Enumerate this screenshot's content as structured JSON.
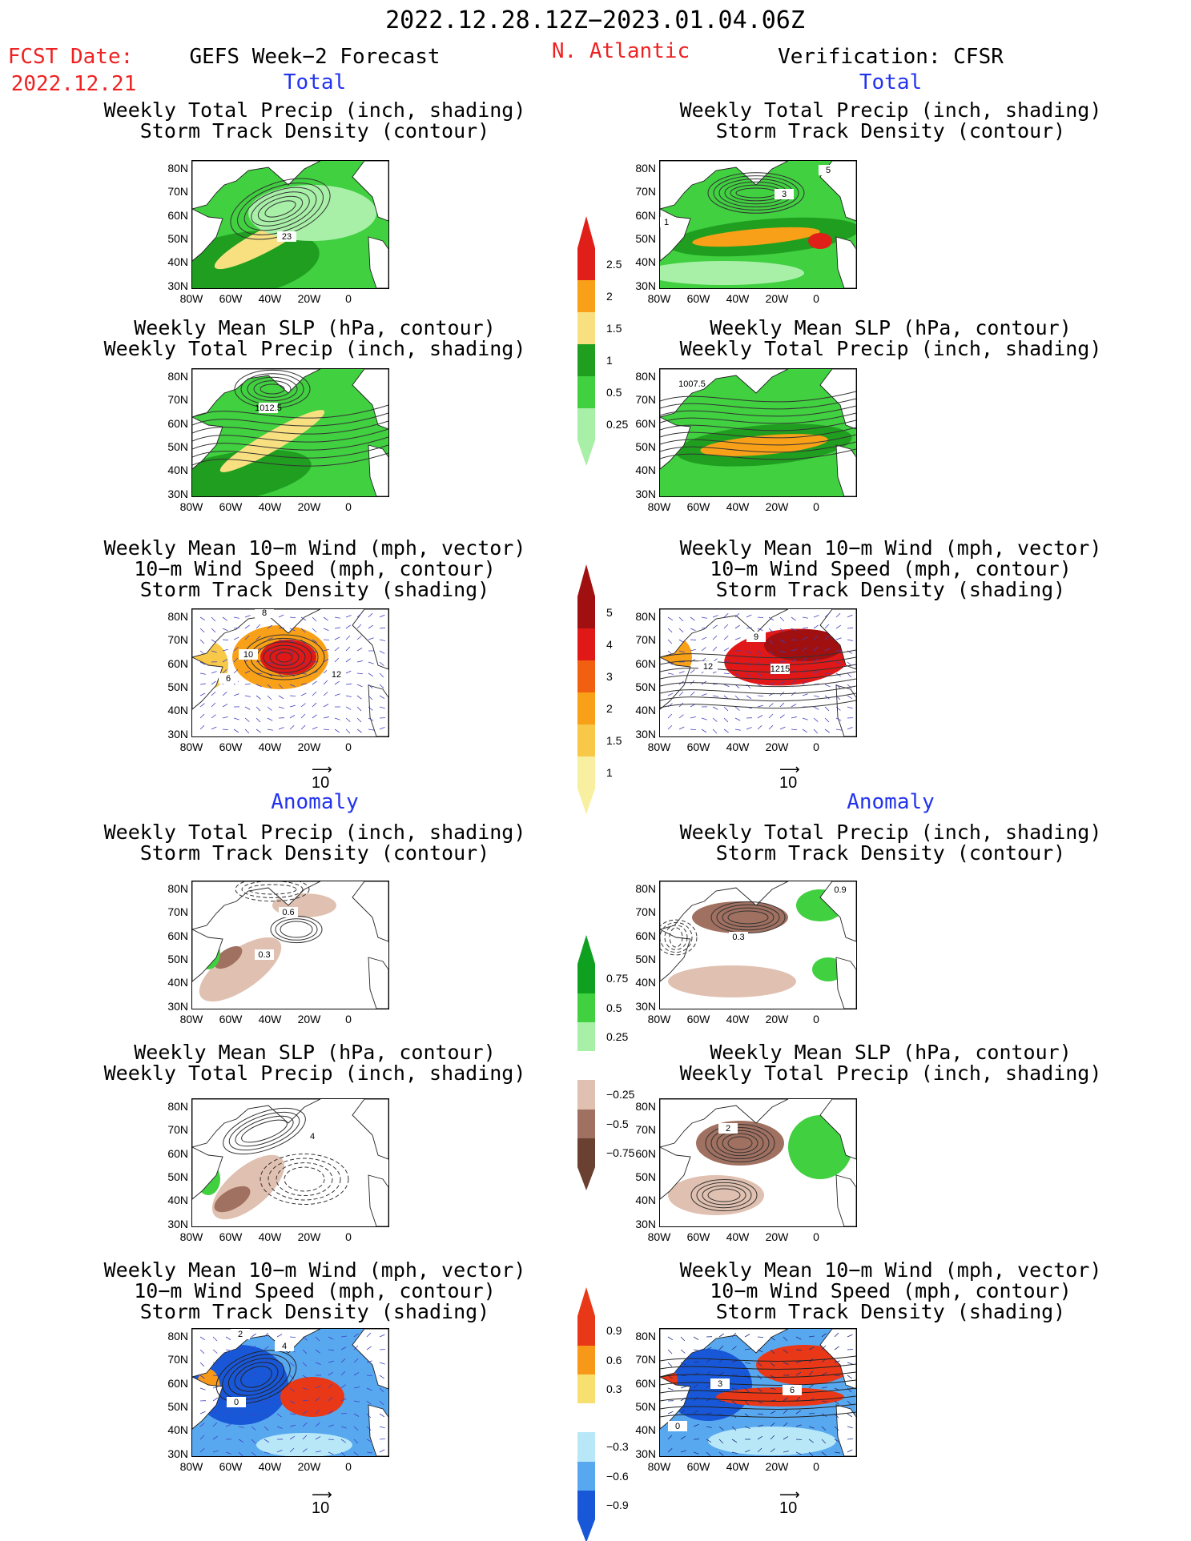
{
  "header": {
    "date_range": "2022.12.28.12Z−2023.01.04.06Z",
    "fcst_label": "FCST Date:",
    "fcst_date": "2022.12.21",
    "model": "GEFS Week−2 Forecast",
    "region": "N. Atlantic",
    "verification": "Verification: CFSR"
  },
  "sections": {
    "total": "Total",
    "anomaly": "Anomaly"
  },
  "titles": {
    "precip_track": [
      "Weekly Total Precip (inch, shading)",
      "Storm Track Density (contour)"
    ],
    "slp_precip": [
      "Weekly Mean SLP (hPa, contour)",
      "Weekly Total Precip (inch, shading)"
    ],
    "wind_track": [
      "Weekly Mean 10−m Wind (mph, vector)",
      "10−m Wind Speed (mph, contour)",
      "Storm Track Density (shading)"
    ]
  },
  "axes": {
    "lat": [
      "80N",
      "70N",
      "60N",
      "50N",
      "40N",
      "30N"
    ],
    "lon": [
      "80W",
      "60W",
      "40W",
      "20W",
      "0"
    ]
  },
  "vector_ref": "10",
  "colorbars": {
    "precip_total": {
      "labels": [
        "2.5",
        "2",
        "1.5",
        "1",
        "0.5",
        "0.25"
      ],
      "colors": [
        "#e02018",
        "#f8a018",
        "#f8e080",
        "#209e20",
        "#40d040",
        "#a8f0a8"
      ]
    },
    "track_total": {
      "labels": [
        "5",
        "4",
        "3",
        "2",
        "1.5",
        "1"
      ],
      "colors": [
        "#a01010",
        "#e01818",
        "#f06010",
        "#f8a018",
        "#f8c848",
        "#f8f0a0"
      ]
    },
    "precip_anom": {
      "labels": [
        "0.75",
        "0.5",
        "0.25",
        "−0.25",
        "−0.5",
        "−0.75"
      ],
      "colors": [
        "#10a020",
        "#40d040",
        "#a8f0a8",
        "#ffffff",
        "#e0c0b0",
        "#a07060",
        "#6a4030"
      ]
    },
    "track_anom": {
      "labels": [
        "0.9",
        "0.6",
        "0.3",
        "−0.3",
        "−0.6",
        "−0.9"
      ],
      "colors": [
        "#e83818",
        "#f89818",
        "#f8e070",
        "#ffffff",
        "#b8e8f8",
        "#58a8f0",
        "#1858d8"
      ]
    },
    "notes": "seven-color colorbars include a white neutral band between positive and negative"
  },
  "panel_labels": {
    "fcst_slp_total": "1012.5",
    "ver_slp_total": "1007.5",
    "fcst_track_total": "23",
    "ver_track_total_a": "1",
    "ver_track_total_b": "3",
    "ver_track_total_c": "5",
    "fcst_wind_total_a": "8",
    "fcst_wind_total_b": "10",
    "fcst_wind_total_c": "12",
    "fcst_wind_total_d": "6",
    "ver_wind_total_a": "9",
    "ver_wind_total_b": "12",
    "ver_wind_total_c": "1215",
    "fcst_track_anom_a": "0.6",
    "fcst_track_anom_b": "0.3",
    "ver_track_anom_a": "0.3",
    "ver_track_anom_b": "0.9",
    "ver_slp_anom": "2",
    "fcst_slp_anom": "4",
    "fcst_wind_anom_a": "2",
    "fcst_wind_anom_b": "4",
    "fcst_wind_anom_c": "0",
    "ver_wind_anom_a": "3",
    "ver_wind_anom_b": "6",
    "ver_wind_anom_c": "0"
  }
}
